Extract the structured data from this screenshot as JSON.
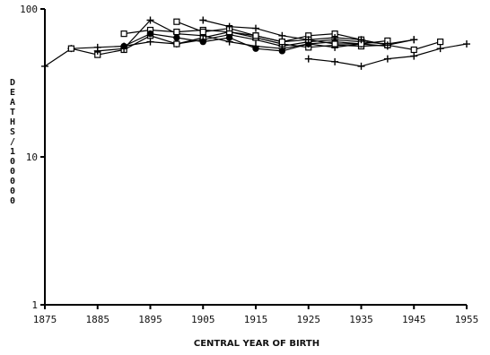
{
  "chart_data": {
    "type": "line",
    "title": "",
    "xlabel": "CENTRAL YEAR OF BIRTH",
    "ylabel": "DEATHS/100000",
    "y_scale": "log",
    "xlim": [
      1875,
      1955
    ],
    "ylim": [
      1,
      100
    ],
    "x_ticks": [
      1875,
      1885,
      1895,
      1905,
      1915,
      1925,
      1935,
      1945,
      1955
    ],
    "y_ticks": [
      {
        "value": 1,
        "label": "1"
      },
      {
        "value": 10,
        "label": "10"
      },
      {
        "value": 100,
        "label": "100"
      }
    ],
    "grid": false,
    "legend": "none",
    "series": [
      {
        "marker": "plus",
        "points": [
          [
            1875,
            41
          ],
          [
            1880,
            54
          ],
          [
            1885,
            55
          ],
          [
            1890,
            56
          ],
          [
            1895,
            60
          ],
          [
            1900,
            58
          ],
          [
            1905,
            62
          ],
          [
            1910,
            67
          ],
          [
            1915,
            62
          ],
          [
            1920,
            56
          ],
          [
            1925,
            60
          ],
          [
            1930,
            62
          ],
          [
            1935,
            60
          ],
          [
            1940,
            58
          ],
          [
            1945,
            62
          ]
        ]
      },
      {
        "marker": "square",
        "points": [
          [
            1880,
            54
          ],
          [
            1885,
            49
          ],
          [
            1890,
            53
          ],
          [
            1895,
            66
          ],
          [
            1900,
            58
          ],
          [
            1905,
            64
          ],
          [
            1910,
            70
          ],
          [
            1915,
            64
          ],
          [
            1920,
            58
          ],
          [
            1925,
            55
          ],
          [
            1930,
            57
          ],
          [
            1935,
            56
          ],
          [
            1940,
            57
          ],
          [
            1945,
            53
          ],
          [
            1950,
            60
          ]
        ]
      },
      {
        "marker": "plus",
        "points": [
          [
            1885,
            52
          ],
          [
            1890,
            54
          ],
          [
            1895,
            84
          ],
          [
            1900,
            68
          ],
          [
            1905,
            66
          ],
          [
            1910,
            60
          ],
          [
            1915,
            56
          ],
          [
            1920,
            54
          ],
          [
            1925,
            58
          ],
          [
            1930,
            55
          ],
          [
            1935,
            58
          ],
          [
            1940,
            56
          ]
        ]
      },
      {
        "marker": "square",
        "points": [
          [
            1890,
            68
          ],
          [
            1895,
            72
          ],
          [
            1900,
            70
          ],
          [
            1905,
            72
          ],
          [
            1910,
            70
          ],
          [
            1915,
            66
          ],
          [
            1920,
            60
          ],
          [
            1925,
            66
          ],
          [
            1930,
            68
          ],
          [
            1935,
            62
          ],
          [
            1940,
            57
          ]
        ]
      },
      {
        "marker": "circle",
        "points": [
          [
            1890,
            56
          ],
          [
            1895,
            68
          ],
          [
            1900,
            64
          ],
          [
            1905,
            60
          ],
          [
            1910,
            64
          ],
          [
            1915,
            54
          ],
          [
            1920,
            52
          ],
          [
            1925,
            58
          ],
          [
            1930,
            60
          ],
          [
            1935,
            58
          ]
        ]
      },
      {
        "marker": "square",
        "points": [
          [
            1900,
            82
          ],
          [
            1905,
            70
          ],
          [
            1910,
            74
          ],
          [
            1915,
            66
          ],
          [
            1920,
            60
          ],
          [
            1925,
            62
          ],
          [
            1930,
            58
          ],
          [
            1935,
            58
          ],
          [
            1940,
            61
          ]
        ]
      },
      {
        "marker": "plus",
        "points": [
          [
            1905,
            84
          ],
          [
            1910,
            76
          ],
          [
            1915,
            74
          ],
          [
            1920,
            66
          ],
          [
            1925,
            62
          ],
          [
            1930,
            64
          ],
          [
            1935,
            62
          ],
          [
            1940,
            57
          ],
          [
            1945,
            62
          ]
        ]
      },
      {
        "marker": "plus",
        "points": [
          [
            1925,
            46
          ],
          [
            1930,
            44
          ],
          [
            1935,
            41
          ],
          [
            1940,
            46
          ],
          [
            1945,
            48
          ],
          [
            1950,
            54
          ],
          [
            1955,
            58
          ]
        ]
      }
    ]
  }
}
